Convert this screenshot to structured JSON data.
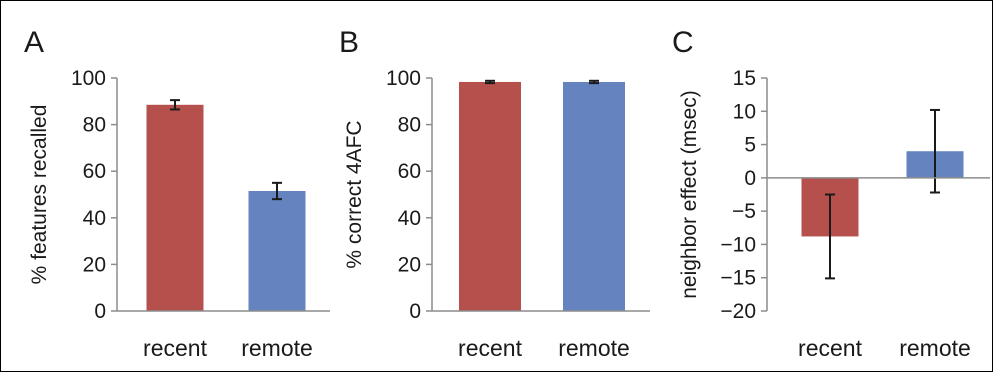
{
  "chart_data": [
    {
      "panel": "A",
      "type": "bar",
      "ylabel": "% features recalled",
      "categories": [
        "recent",
        "remote"
      ],
      "values": [
        88.5,
        51.5
      ],
      "errors": [
        2.0,
        3.5
      ],
      "colors": [
        "#b5504c",
        "#6483bf"
      ],
      "ylim": [
        0,
        100
      ],
      "yticks": [
        "0",
        "20",
        "40",
        "60",
        "80",
        "100"
      ],
      "grid": false
    },
    {
      "panel": "B",
      "type": "bar",
      "ylabel": "% correct 4AFC",
      "categories": [
        "recent",
        "remote"
      ],
      "values": [
        98.3,
        98.3
      ],
      "errors": [
        0.5,
        0.5
      ],
      "colors": [
        "#b5504c",
        "#6483bf"
      ],
      "ylim": [
        0,
        100
      ],
      "yticks": [
        "0",
        "20",
        "40",
        "60",
        "80",
        "100"
      ],
      "grid": false
    },
    {
      "panel": "C",
      "type": "bar",
      "ylabel": "neighbor effect (msec)",
      "categories": [
        "recent",
        "remote"
      ],
      "values": [
        -8.8,
        4.0
      ],
      "errors": [
        6.3,
        6.2
      ],
      "colors": [
        "#b5504c",
        "#6483bf"
      ],
      "ylim": [
        -20,
        15
      ],
      "yticks": [
        "15",
        "10",
        "5",
        "0",
        "−5",
        "−10",
        "−15",
        "−20"
      ],
      "grid": false
    }
  ]
}
